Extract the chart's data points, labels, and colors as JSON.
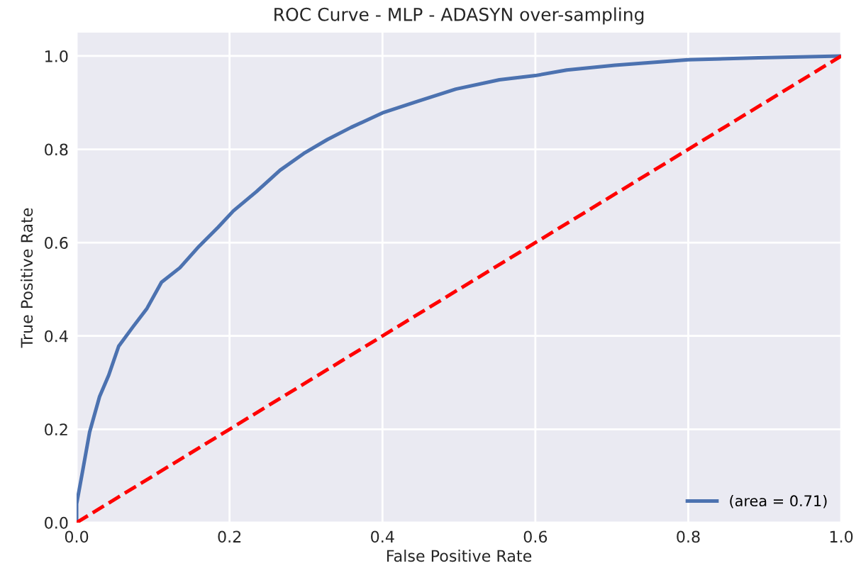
{
  "chart_data": {
    "type": "line",
    "title": "ROC Curve - MLP - ADASYN over-sampling",
    "xlabel": "False Positive Rate",
    "ylabel": "True Positive Rate",
    "series": [
      {
        "name": "(area = 0.71)",
        "color": "#4c72b0",
        "line_style": "solid",
        "x": [
          0,
          0,
          0.008,
          0.017,
          0.03,
          0.042,
          0.055,
          0.073,
          0.092,
          0.111,
          0.135,
          0.16,
          0.185,
          0.205,
          0.235,
          0.266,
          0.297,
          0.328,
          0.359,
          0.4,
          0.446,
          0.496,
          0.553,
          0.6,
          0.641,
          0.704,
          0.8,
          0.892,
          1.0
        ],
        "values": [
          0,
          0.04,
          0.112,
          0.194,
          0.27,
          0.316,
          0.378,
          0.418,
          0.459,
          0.515,
          0.546,
          0.592,
          0.633,
          0.668,
          0.709,
          0.755,
          0.791,
          0.821,
          0.847,
          0.878,
          0.903,
          0.929,
          0.949,
          0.958,
          0.97,
          0.98,
          0.992,
          0.996,
          1.0
        ]
      },
      {
        "color": "#ff0000",
        "line_style": "dashed",
        "x": [
          0,
          1
        ],
        "values": [
          0,
          1
        ]
      }
    ],
    "xlim": [
      0,
      1
    ],
    "ylim": [
      0,
      1.05
    ],
    "xticks": [
      {
        "value": 0,
        "label": "0.0"
      },
      {
        "value": 0.2,
        "label": "0.2"
      },
      {
        "value": 0.4,
        "label": "0.4"
      },
      {
        "value": 0.6,
        "label": "0.6"
      },
      {
        "value": 0.8,
        "label": "0.8"
      },
      {
        "value": 1,
        "label": "1.0"
      }
    ],
    "yticks": [
      {
        "value": 0,
        "label": "0.0"
      },
      {
        "value": 0.2,
        "label": "0.2"
      },
      {
        "value": 0.4,
        "label": "0.4"
      },
      {
        "value": 0.6,
        "label": "0.6"
      },
      {
        "value": 0.8,
        "label": "0.8"
      },
      {
        "value": 1,
        "label": "1.0"
      }
    ],
    "grid": true,
    "legend": "lower right"
  }
}
